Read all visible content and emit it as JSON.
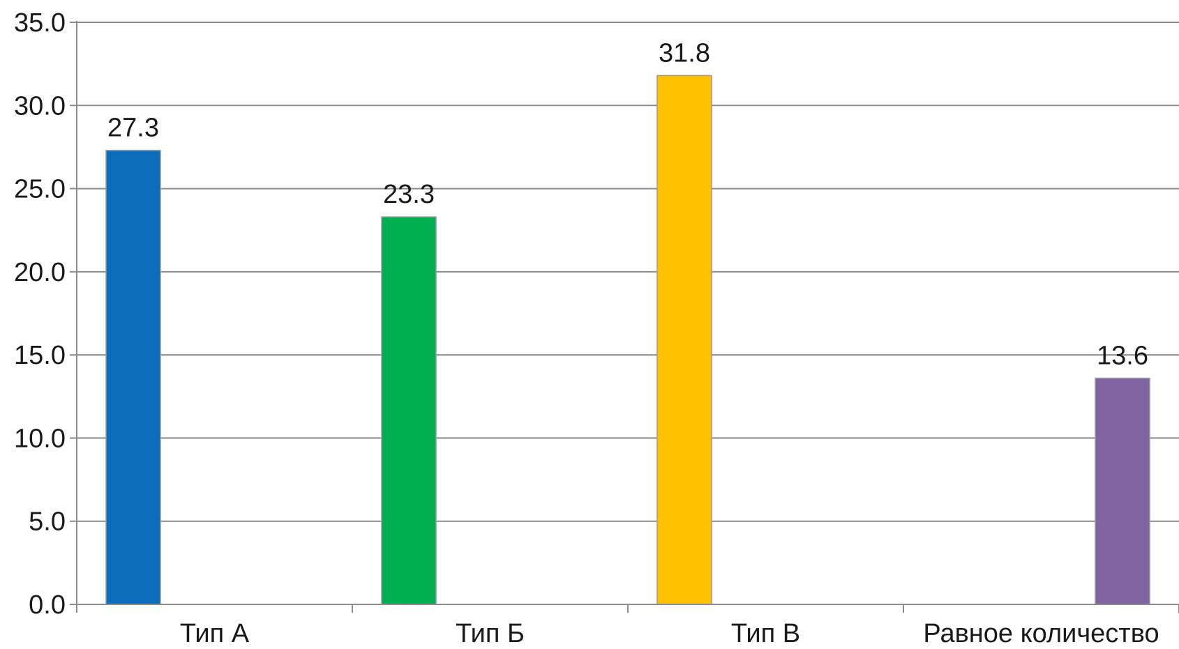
{
  "chart_data": {
    "type": "bar",
    "categories": [
      "Тип А",
      "Тип Б",
      "Тип В",
      "Равное количество"
    ],
    "series": [
      {
        "values": [
          27.3,
          23.3,
          31.8,
          13.6
        ]
      }
    ],
    "value_labels": [
      "27.3",
      "23.3",
      "31.8",
      "13.6"
    ],
    "bar_colors": [
      "#0a6ebd",
      "#00b050",
      "#ffc000",
      "#8064a2"
    ],
    "bar_positions": [
      "left",
      "left",
      "left",
      "right"
    ],
    "ylim": [
      0,
      35
    ],
    "yticks": [
      0,
      5,
      10,
      15,
      20,
      25,
      30,
      35
    ],
    "ytick_labels": [
      "0.0",
      "5.0",
      "10.0",
      "15.0",
      "20.0",
      "25.0",
      "30.0",
      "35.0"
    ],
    "grid": true,
    "legend": "none"
  }
}
